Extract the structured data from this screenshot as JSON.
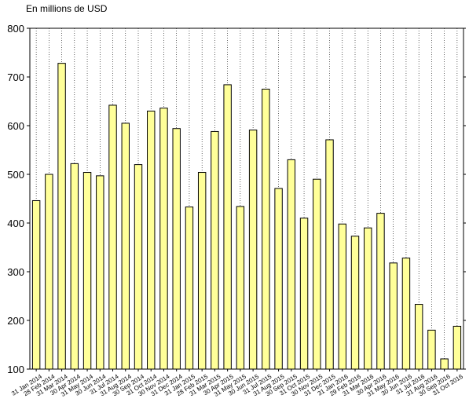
{
  "chart_data": {
    "type": "bar",
    "ylabel": "En millions de USD",
    "ylim": [
      100,
      800
    ],
    "yticks": [
      100,
      200,
      300,
      400,
      500,
      600,
      700,
      800
    ],
    "grid": "vertical dotted",
    "bar_color": "#ffff99",
    "bar_edge_color": "#000000",
    "categories": [
      "31 Jan 2014",
      "28 Feb 2014",
      "31 Mar 2014",
      "30 Apr 2014",
      "31 May 2014",
      "30 Jun 2014",
      "31 Jul 2014",
      "31 Aug 2014",
      "30 Sep 2014",
      "31 Oct 2014",
      "30 Nov 2014",
      "31 Dec 2014",
      "31 Jan 2015",
      "28 Feb 2015",
      "31 Mar 2015",
      "30 Apr 2015",
      "31 May 2015",
      "30 Jun 2015",
      "31 Jul 2015",
      "31 Aug 2015",
      "30 Sep 2015",
      "31 Oct 2015",
      "30 Nov 2015",
      "31 Dec 2015",
      "31 Jan 2016",
      "29 Feb 2016",
      "31 Mar 2016",
      "30 Apr 2016",
      "31 May 2016",
      "30 Jun 2016",
      "31 Jul 2016",
      "31 Aug 2016",
      "30 Sep 2016",
      "31 Oct 2016"
    ],
    "values": [
      446,
      500,
      728,
      522,
      504,
      497,
      642,
      605,
      520,
      630,
      636,
      594,
      433,
      504,
      588,
      684,
      434,
      591,
      675,
      471,
      530,
      410,
      490,
      571,
      398,
      373,
      390,
      420,
      318,
      328,
      233,
      180,
      121,
      188
    ]
  }
}
